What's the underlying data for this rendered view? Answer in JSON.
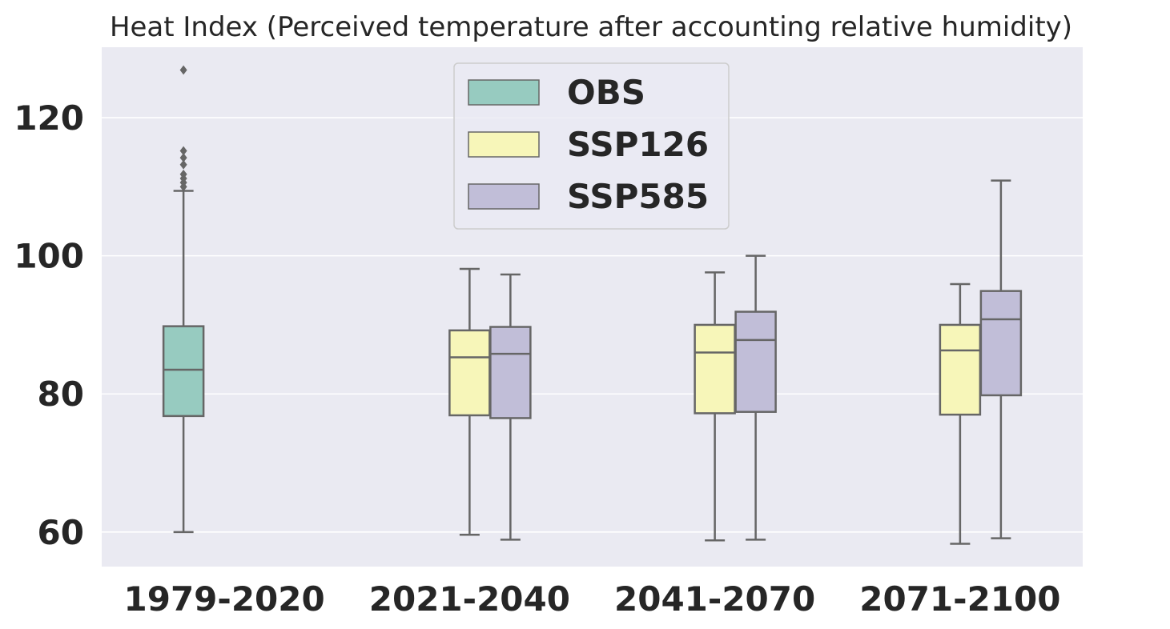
{
  "chart_data": {
    "type": "box",
    "title": "Heat Index (Perceived temperature after accounting relative humidity)",
    "xlabel": "",
    "ylabel": "",
    "categories": [
      "1979-2020",
      "2021-2040",
      "2041-2070",
      "2071-2100"
    ],
    "ylim": [
      55.0,
      130.2
    ],
    "yticks": [
      60,
      80,
      100,
      120
    ],
    "grid": true,
    "legend_position": "top-center",
    "series": [
      {
        "name": "OBS",
        "color": "#97cbc0",
        "boxes": [
          {
            "category": "1979-2020",
            "whislo": 60.0,
            "q1": 76.8,
            "med": 83.5,
            "q3": 89.8,
            "whishi": 109.4,
            "fliers": [
              110.0,
              110.6,
              111.2,
              111.8,
              113.2,
              114.2,
              115.2,
              126.9
            ]
          }
        ]
      },
      {
        "name": "SSP126",
        "color": "#f7f6b9",
        "boxes": [
          {
            "category": "2021-2040",
            "whislo": 59.6,
            "q1": 76.9,
            "med": 85.3,
            "q3": 89.2,
            "whishi": 98.1,
            "fliers": []
          },
          {
            "category": "2041-2070",
            "whislo": 58.8,
            "q1": 77.2,
            "med": 86.0,
            "q3": 90.0,
            "whishi": 97.6,
            "fliers": []
          },
          {
            "category": "2071-2100",
            "whislo": 58.3,
            "q1": 77.0,
            "med": 86.3,
            "q3": 90.0,
            "whishi": 95.9,
            "fliers": []
          }
        ]
      },
      {
        "name": "SSP585",
        "color": "#c1bed8",
        "boxes": [
          {
            "category": "2021-2040",
            "whislo": 58.9,
            "q1": 76.5,
            "med": 85.8,
            "q3": 89.7,
            "whishi": 97.3,
            "fliers": []
          },
          {
            "category": "2041-2070",
            "whislo": 58.9,
            "q1": 77.4,
            "med": 87.8,
            "q3": 91.9,
            "whishi": 100.0,
            "fliers": []
          },
          {
            "category": "2071-2100",
            "whislo": 59.1,
            "q1": 79.8,
            "med": 90.8,
            "q3": 94.9,
            "whishi": 110.9,
            "fliers": []
          }
        ]
      }
    ]
  },
  "colors": {
    "plot_background": "#eaeaf2",
    "grid": "#ffffff",
    "box_edge": "#666666",
    "text": "#262626"
  }
}
